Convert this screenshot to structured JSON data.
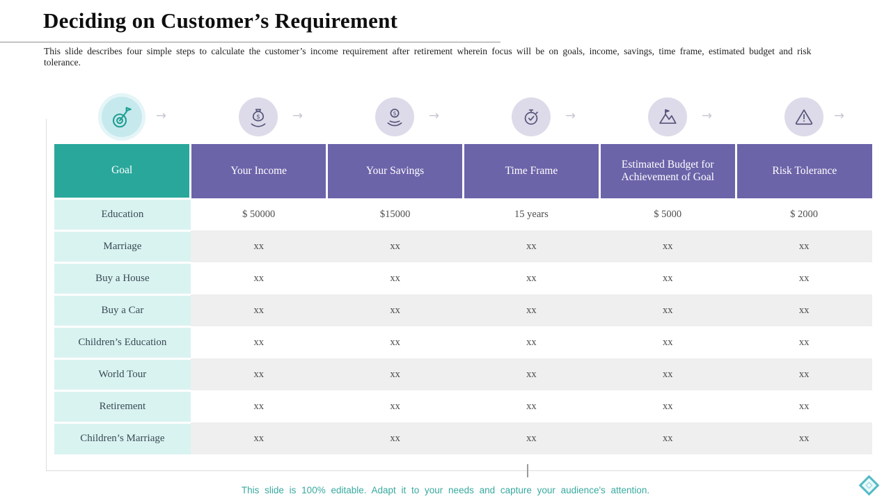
{
  "slide": {
    "title": "Deciding on Customer’s Requirement",
    "subtitle": "This slide describes four simple steps to calculate the customer’s income requirement after retirement wherein focus will be on goals, income, savings, time frame, estimated budget and risk tolerance.",
    "footer": "This slide is 100% editable. Adapt it to your needs and capture your audience's attention."
  },
  "steps": {
    "icons": [
      "goal-target-icon",
      "money-bag-hand-icon",
      "dollar-coin-hand-icon",
      "stopwatch-icon",
      "mountain-flag-icon",
      "warning-triangle-icon"
    ],
    "arrow_icon": "right-arrow-icon"
  },
  "table": {
    "headers": [
      "Goal",
      "Your Income",
      "Your Savings",
      "Time Frame",
      "Estimated Budget for Achievement of Goal",
      "Risk Tolerance"
    ],
    "rows": [
      {
        "goal": "Education",
        "values": [
          "$ 50000",
          "$15000",
          "15 years",
          "$ 5000",
          "$ 2000"
        ]
      },
      {
        "goal": "Marriage",
        "values": [
          "xx",
          "xx",
          "xx",
          "xx",
          "xx"
        ]
      },
      {
        "goal": "Buy a House",
        "values": [
          "xx",
          "xx",
          "xx",
          "xx",
          "xx"
        ]
      },
      {
        "goal": "Buy a Car",
        "values": [
          "xx",
          "xx",
          "xx",
          "xx",
          "xx"
        ]
      },
      {
        "goal": "Children’s Education",
        "values": [
          "xx",
          "xx",
          "xx",
          "xx",
          "xx"
        ]
      },
      {
        "goal": "World Tour",
        "values": [
          "xx",
          "xx",
          "xx",
          "xx",
          "xx"
        ]
      },
      {
        "goal": "Retirement",
        "values": [
          "xx",
          "xx",
          "xx",
          "xx",
          "xx"
        ]
      },
      {
        "goal": "Children’s Marriage",
        "values": [
          "xx",
          "xx",
          "xx",
          "xx",
          "xx"
        ]
      }
    ]
  },
  "colors": {
    "header_purple": "#6b64a9",
    "goal_header_teal": "#2aa79b",
    "goal_column_bg": "#d9f3f1",
    "stripe_gray": "#efefef",
    "footer_teal": "#38a99e",
    "icon_circle_lavender": "#dddbe9",
    "icon_circle_teal": "#c6e9ee"
  }
}
